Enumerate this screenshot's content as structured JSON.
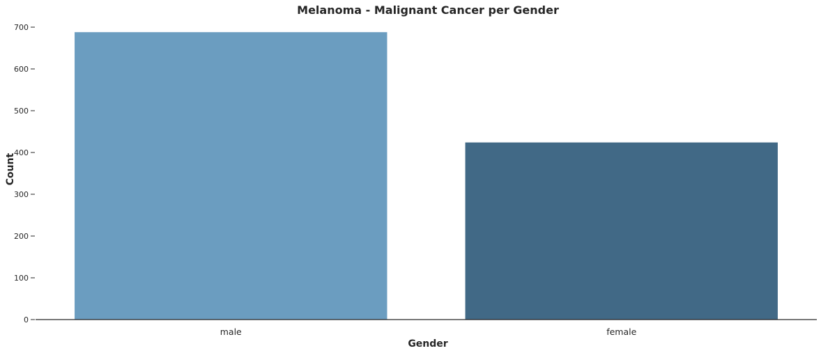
{
  "chart_data": {
    "type": "bar",
    "title": "Melanoma - Malignant Cancer per Gender",
    "xlabel": "Gender",
    "ylabel": "Count",
    "categories": [
      "male",
      "female"
    ],
    "values": [
      688,
      424
    ],
    "colors": [
      "#6b9dc0",
      "#416986"
    ],
    "ylim": [
      0,
      700
    ],
    "yticks": [
      0,
      100,
      200,
      300,
      400,
      500,
      600,
      700
    ],
    "grid": false,
    "legend": "none"
  }
}
